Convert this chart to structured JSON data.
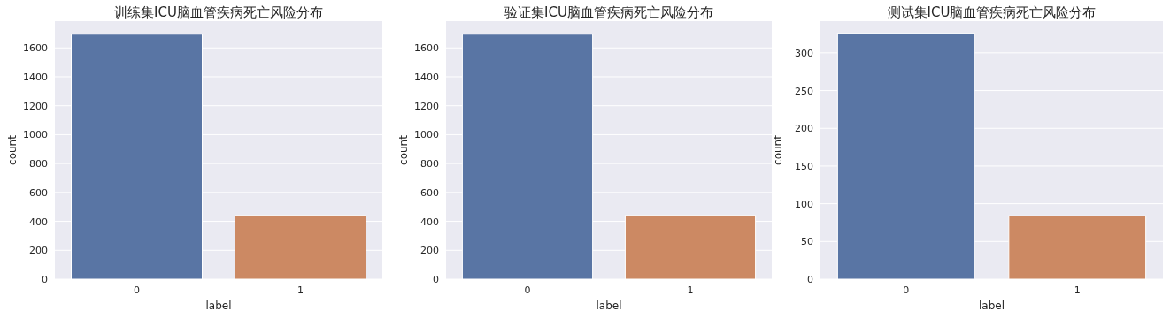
{
  "chart_data": [
    {
      "type": "bar",
      "title": "训练集ICU脑血管疾病死亡风险分布",
      "xlabel": "label",
      "ylabel": "count",
      "categories": [
        "0",
        "1"
      ],
      "values": [
        1695,
        441
      ],
      "colors": [
        "#5975a4",
        "#cc8963"
      ],
      "ylim": [
        0,
        1785
      ],
      "yticks": [
        0,
        200,
        400,
        600,
        800,
        1000,
        1200,
        1400,
        1600
      ],
      "grid": "y"
    },
    {
      "type": "bar",
      "title": "验证集ICU脑血管疾病死亡风险分布",
      "xlabel": "label",
      "ylabel": "count",
      "categories": [
        "0",
        "1"
      ],
      "values": [
        1695,
        441
      ],
      "colors": [
        "#5975a4",
        "#cc8963"
      ],
      "ylim": [
        0,
        1785
      ],
      "yticks": [
        0,
        200,
        400,
        600,
        800,
        1000,
        1200,
        1400,
        1600
      ],
      "grid": "y"
    },
    {
      "type": "bar",
      "title": "测试集ICU脑血管疾病死亡风险分布",
      "xlabel": "label",
      "ylabel": "count",
      "categories": [
        "0",
        "1"
      ],
      "values": [
        326,
        84
      ],
      "colors": [
        "#5975a4",
        "#cc8963"
      ],
      "ylim": [
        0,
        342
      ],
      "yticks": [
        0,
        50,
        100,
        150,
        200,
        250,
        300
      ],
      "grid": "y"
    }
  ]
}
